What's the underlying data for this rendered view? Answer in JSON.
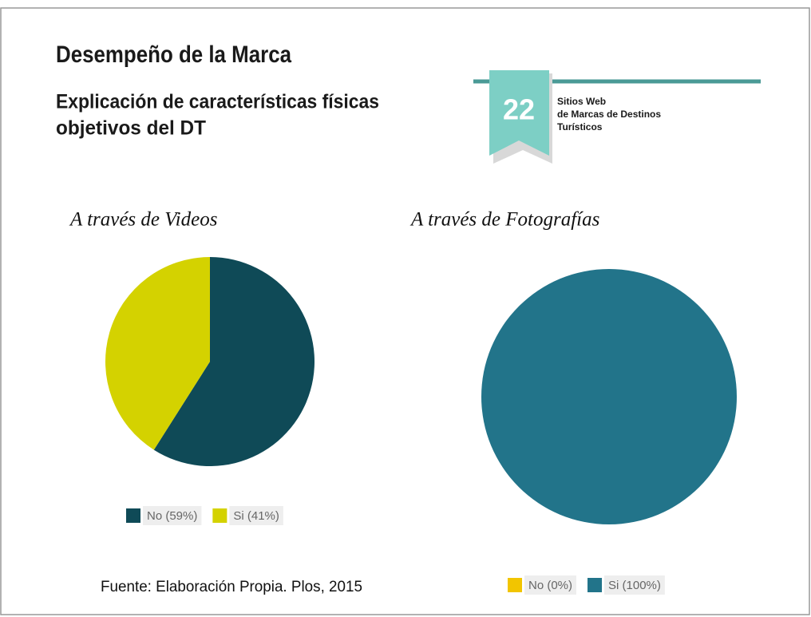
{
  "title": "Desempeño de la Marca",
  "subtitle": [
    "Explicación de características físicas",
    "objetivos del DT"
  ],
  "badge": {
    "number": "22",
    "lines": [
      "Sitios Web",
      "de Marcas de Destinos",
      "Turísticos"
    ]
  },
  "source": "Fuente: Elaboración Propia. Plos, 2015",
  "chart_data": [
    {
      "type": "pie",
      "title": "A través de Videos",
      "categories": [
        "No (59%)",
        "Si (41%)"
      ],
      "values": [
        59,
        41
      ],
      "colors": [
        "#0f4a57",
        "#d4d200"
      ]
    },
    {
      "type": "pie",
      "title": "A través de Fotografías",
      "categories": [
        "No (0%)",
        "Si (100%)"
      ],
      "values": [
        0,
        100
      ],
      "colors": [
        "#f2c500",
        "#22748a"
      ]
    }
  ]
}
